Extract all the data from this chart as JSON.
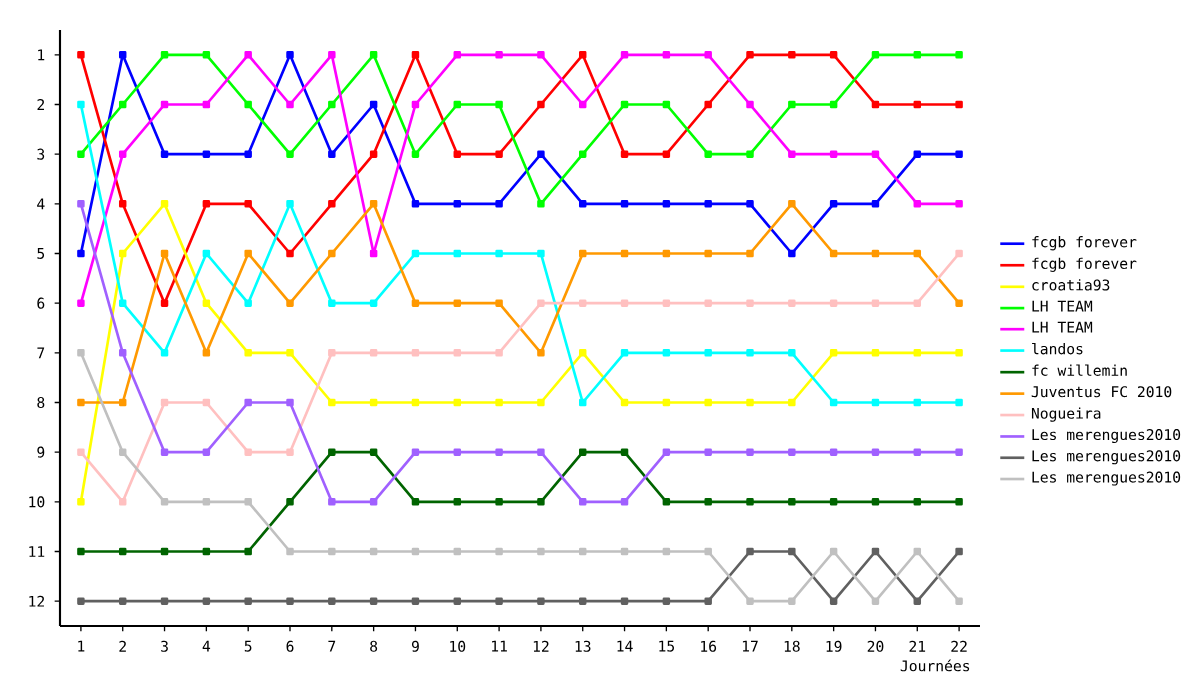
{
  "chart_data": {
    "type": "line",
    "xlabel": "Journées",
    "x": [
      1,
      2,
      3,
      4,
      5,
      6,
      7,
      8,
      9,
      10,
      11,
      12,
      13,
      14,
      15,
      16,
      17,
      18,
      19,
      20,
      21,
      22
    ],
    "xlim": [
      0.5,
      22.5
    ],
    "xticks": [
      1,
      2,
      3,
      4,
      5,
      6,
      7,
      8,
      9,
      10,
      11,
      12,
      13,
      14,
      15,
      16,
      17,
      18,
      19,
      20,
      21,
      22
    ],
    "ylim": [
      12.5,
      0.5
    ],
    "yticks": [
      1,
      2,
      3,
      4,
      5,
      6,
      7,
      8,
      9,
      10,
      11,
      12
    ],
    "marker": "square",
    "legend": "right",
    "series": [
      {
        "name": "fcgb forever",
        "color": "#0000ff",
        "values": [
          5,
          1,
          3,
          3,
          3,
          1,
          3,
          2,
          4,
          4,
          4,
          3,
          4,
          4,
          4,
          4,
          4,
          5,
          4,
          4,
          3,
          3
        ]
      },
      {
        "name": "fcgb forever",
        "color": "#ff0000",
        "values": [
          1,
          4,
          6,
          4,
          4,
          5,
          4,
          3,
          1,
          3,
          3,
          2,
          1,
          3,
          3,
          2,
          1,
          1,
          1,
          2,
          2,
          2
        ]
      },
      {
        "name": "croatia93",
        "color": "#ffff00",
        "values": [
          10,
          5,
          4,
          6,
          7,
          7,
          8,
          8,
          8,
          8,
          8,
          8,
          7,
          8,
          8,
          8,
          8,
          8,
          7,
          7,
          7,
          7
        ]
      },
      {
        "name": "LH TEAM",
        "color": "#00ff00",
        "values": [
          3,
          2,
          1,
          1,
          2,
          3,
          2,
          1,
          3,
          2,
          2,
          4,
          3,
          2,
          2,
          3,
          3,
          2,
          2,
          1,
          1,
          1
        ]
      },
      {
        "name": "LH TEAM",
        "color": "#ff00ff",
        "values": [
          6,
          3,
          2,
          2,
          1,
          2,
          1,
          5,
          2,
          1,
          1,
          1,
          2,
          1,
          1,
          1,
          2,
          3,
          3,
          3,
          4,
          4
        ]
      },
      {
        "name": "landos",
        "color": "#00ffff",
        "values": [
          2,
          6,
          7,
          5,
          6,
          4,
          6,
          6,
          5,
          5,
          5,
          5,
          8,
          7,
          7,
          7,
          7,
          7,
          8,
          8,
          8,
          8
        ]
      },
      {
        "name": "fc willemin",
        "color": "#006400",
        "values": [
          11,
          11,
          11,
          11,
          11,
          10,
          9,
          9,
          10,
          10,
          10,
          10,
          9,
          9,
          10,
          10,
          10,
          10,
          10,
          10,
          10,
          10
        ]
      },
      {
        "name": "Juventus FC 2010",
        "color": "#ff9900",
        "values": [
          8,
          8,
          5,
          7,
          5,
          6,
          5,
          4,
          6,
          6,
          6,
          7,
          5,
          5,
          5,
          5,
          5,
          4,
          5,
          5,
          5,
          6
        ]
      },
      {
        "name": "Nogueira",
        "color": "#ffc0c0",
        "values": [
          9,
          10,
          8,
          8,
          9,
          9,
          7,
          7,
          7,
          7,
          7,
          6,
          6,
          6,
          6,
          6,
          6,
          6,
          6,
          6,
          6,
          5
        ]
      },
      {
        "name": "Les merengues2010",
        "color": "#a060ff",
        "values": [
          4,
          7,
          9,
          9,
          8,
          8,
          10,
          10,
          9,
          9,
          9,
          9,
          10,
          10,
          9,
          9,
          9,
          9,
          9,
          9,
          9,
          9
        ]
      },
      {
        "name": "Les merengues2010",
        "color": "#606060",
        "values": [
          12,
          12,
          12,
          12,
          12,
          12,
          12,
          12,
          12,
          12,
          12,
          12,
          12,
          12,
          12,
          12,
          11,
          11,
          12,
          11,
          12,
          11
        ]
      },
      {
        "name": "Les merengues2010",
        "color": "#c0c0c0",
        "values": [
          7,
          9,
          10,
          10,
          10,
          11,
          11,
          11,
          11,
          11,
          11,
          11,
          11,
          11,
          11,
          11,
          12,
          12,
          11,
          12,
          11,
          12
        ]
      }
    ]
  }
}
